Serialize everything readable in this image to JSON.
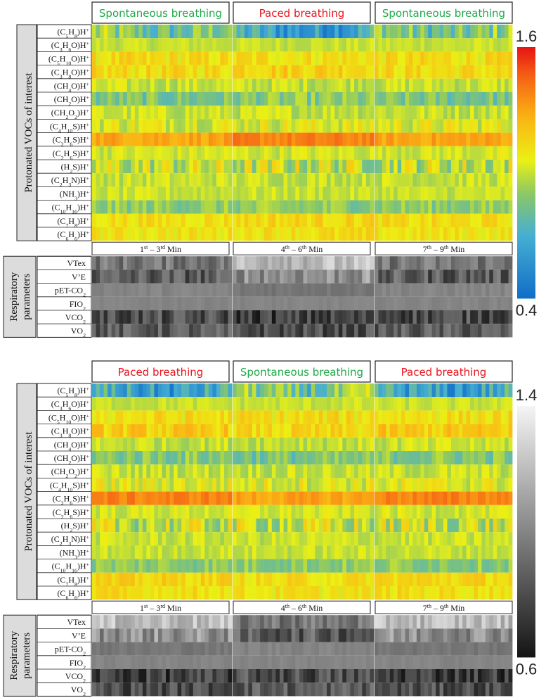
{
  "chart_data": [
    {
      "type": "heatmap",
      "colormap": "jet",
      "colorbar": {
        "max_label": "1.6",
        "min_label": "0.4",
        "max": 1.6,
        "min": 0.4
      },
      "voc_axis_title": "Protonated VOCs of interest",
      "resp_axis_title": [
        "Respiratory",
        "parameters"
      ],
      "phases": [
        {
          "label": "Spontaneous breathing",
          "color": "#1faa4a",
          "mode": "spontaneous",
          "window": {
            "main": "1",
            "sup_start": "st",
            "mid": " – 3",
            "sup_end": "rd",
            "tail": " Min"
          }
        },
        {
          "label": "Paced breathing",
          "color": "#e8141c",
          "mode": "paced",
          "window": {
            "main": "4",
            "sup_start": "th",
            "mid": " – 6",
            "sup_end": "th",
            "tail": " Min"
          }
        },
        {
          "label": "Spontaneous breathing",
          "color": "#1faa4a",
          "mode": "spontaneous",
          "window": {
            "main": "7",
            "sup_start": "th",
            "mid": " – 9",
            "sup_end": "th",
            "tail": " Min"
          }
        }
      ]
    },
    {
      "type": "heatmap",
      "colormap": "gray",
      "colorbar": {
        "max_label": "1.4",
        "min_label": "0.6",
        "max": 1.4,
        "min": 0.6
      },
      "voc_axis_title": "Protonated VOCs of interest",
      "resp_axis_title": [
        "Respiratory",
        "parameters"
      ],
      "phases": [
        {
          "label": "Paced breathing",
          "color": "#e8141c",
          "mode": "paced",
          "window": {
            "main": "1",
            "sup_start": "st",
            "mid": " – 3",
            "sup_end": "rd",
            "tail": " Min"
          }
        },
        {
          "label": "Spontaneous breathing",
          "color": "#1faa4a",
          "mode": "spontaneous",
          "window": {
            "main": "4",
            "sup_start": "th",
            "mid": " – 6",
            "sup_end": "th",
            "tail": " Min"
          }
        },
        {
          "label": "Paced breathing",
          "color": "#e8141c",
          "mode": "paced",
          "window": {
            "main": "7",
            "sup_start": "th",
            "mid": " – 9",
            "sup_end": "th",
            "tail": " Min"
          }
        }
      ]
    }
  ],
  "voc_rows": [
    {
      "id": "C5H8",
      "parts": [
        [
          "n",
          "(C"
        ],
        [
          "s",
          "5"
        ],
        [
          "n",
          "H"
        ],
        [
          "s",
          "8"
        ],
        [
          "n",
          ")H"
        ],
        [
          "p",
          "+"
        ]
      ],
      "base_spont": 0.95,
      "base_paced": 0.75,
      "var": 0.18
    },
    {
      "id": "C3H6O",
      "parts": [
        [
          "n",
          "(C"
        ],
        [
          "s",
          "3"
        ],
        [
          "n",
          "H"
        ],
        [
          "s",
          "6"
        ],
        [
          "n",
          "O)H"
        ],
        [
          "p",
          "+"
        ]
      ],
      "base_spont": 1.0,
      "base_paced": 1.0,
      "var": 0.05
    },
    {
      "id": "C5H10O",
      "parts": [
        [
          "n",
          "(C"
        ],
        [
          "s",
          "5"
        ],
        [
          "n",
          "H"
        ],
        [
          "s",
          "10"
        ],
        [
          "n",
          "O)H"
        ],
        [
          "p",
          "+"
        ]
      ],
      "base_spont": 1.12,
      "base_paced": 1.12,
      "var": 0.1
    },
    {
      "id": "C3H8O",
      "parts": [
        [
          "n",
          "(C"
        ],
        [
          "s",
          "3"
        ],
        [
          "n",
          "H"
        ],
        [
          "s",
          "8"
        ],
        [
          "n",
          "O)H"
        ],
        [
          "p",
          "+"
        ]
      ],
      "base_spont": 1.13,
      "base_paced": 1.18,
      "var": 0.1
    },
    {
      "id": "CH4O",
      "parts": [
        [
          "n",
          "(CH"
        ],
        [
          "s",
          "4"
        ],
        [
          "n",
          "O)H"
        ],
        [
          "p",
          "+"
        ]
      ],
      "base_spont": 1.0,
      "base_paced": 1.0,
      "var": 0.08
    },
    {
      "id": "CH2O",
      "parts": [
        [
          "n",
          "(CH"
        ],
        [
          "s",
          "2"
        ],
        [
          "n",
          "O)H"
        ],
        [
          "p",
          "+"
        ]
      ],
      "base_spont": 0.85,
      "base_paced": 0.88,
      "var": 0.12
    },
    {
      "id": "CH2O2",
      "parts": [
        [
          "n",
          "(CH"
        ],
        [
          "s",
          "2"
        ],
        [
          "n",
          "O"
        ],
        [
          "s",
          "2"
        ],
        [
          "n",
          ")H"
        ],
        [
          "p",
          "+"
        ]
      ],
      "base_spont": 1.0,
      "base_paced": 1.0,
      "var": 0.08
    },
    {
      "id": "C4H10S",
      "parts": [
        [
          "n",
          "(C"
        ],
        [
          "s",
          "4"
        ],
        [
          "n",
          "H"
        ],
        [
          "s",
          "10"
        ],
        [
          "n",
          "S)H"
        ],
        [
          "p",
          "+"
        ]
      ],
      "base_spont": 1.05,
      "base_paced": 1.05,
      "var": 0.12
    },
    {
      "id": "C2H6S_a",
      "parts": [
        [
          "n",
          "(C"
        ],
        [
          "s",
          "2"
        ],
        [
          "n",
          "H"
        ],
        [
          "s",
          "6"
        ],
        [
          "n",
          "S)H"
        ],
        [
          "p",
          "+"
        ]
      ],
      "base_spont": 1.3,
      "base_paced": 1.38,
      "var": 0.06
    },
    {
      "id": "C2H6S_b",
      "parts": [
        [
          "n",
          "(C"
        ],
        [
          "s",
          "2"
        ],
        [
          "n",
          "H"
        ],
        [
          "s",
          "6"
        ],
        [
          "n",
          "S)H"
        ],
        [
          "p",
          "+"
        ]
      ],
      "base_spont": 1.02,
      "base_paced": 1.02,
      "var": 0.07
    },
    {
      "id": "H2S",
      "parts": [
        [
          "n",
          "(H"
        ],
        [
          "s",
          "2"
        ],
        [
          "n",
          "S)H"
        ],
        [
          "p",
          "+"
        ]
      ],
      "base_spont": 1.0,
      "base_paced": 1.0,
      "var": 0.2
    },
    {
      "id": "C2H3N",
      "parts": [
        [
          "n",
          "(C"
        ],
        [
          "s",
          "2"
        ],
        [
          "n",
          "H"
        ],
        [
          "s",
          "3"
        ],
        [
          "n",
          "N)H"
        ],
        [
          "p",
          "+"
        ]
      ],
      "base_spont": 1.0,
      "base_paced": 1.0,
      "var": 0.07
    },
    {
      "id": "NH3",
      "parts": [
        [
          "n",
          "(NH"
        ],
        [
          "s",
          "3"
        ],
        [
          "n",
          ")H"
        ],
        [
          "p",
          "+"
        ]
      ],
      "base_spont": 1.0,
      "base_paced": 1.0,
      "var": 0.06
    },
    {
      "id": "C10H16",
      "parts": [
        [
          "n",
          "(C"
        ],
        [
          "s",
          "10"
        ],
        [
          "n",
          "H"
        ],
        [
          "s",
          "16"
        ],
        [
          "n",
          ")H"
        ],
        [
          "p",
          "+"
        ]
      ],
      "base_spont": 0.9,
      "base_paced": 0.9,
      "var": 0.1
    },
    {
      "id": "C7H8",
      "parts": [
        [
          "n",
          "(C"
        ],
        [
          "s",
          "7"
        ],
        [
          "n",
          "H"
        ],
        [
          "s",
          "8"
        ],
        [
          "n",
          ")H"
        ],
        [
          "p",
          "+"
        ]
      ],
      "base_spont": 1.12,
      "base_paced": 1.15,
      "var": 0.08
    },
    {
      "id": "C6H6",
      "parts": [
        [
          "n",
          "(C"
        ],
        [
          "s",
          "6"
        ],
        [
          "n",
          "H"
        ],
        [
          "s",
          "6"
        ],
        [
          "n",
          ")H"
        ],
        [
          "p",
          "+"
        ]
      ],
      "base_spont": 1.1,
      "base_paced": 1.12,
      "var": 0.08
    }
  ],
  "resp_rows": [
    {
      "id": "VTex",
      "parts": [
        [
          "n",
          "VTex"
        ]
      ],
      "base_spont": 0.95,
      "base_paced": 1.2,
      "var": 0.12
    },
    {
      "id": "VE",
      "parts": [
        [
          "n",
          "V’E"
        ]
      ],
      "base_spont": 0.85,
      "base_paced": 1.05,
      "var": 0.15
    },
    {
      "id": "pETCO2",
      "parts": [
        [
          "n",
          "pET-CO"
        ],
        [
          "s",
          "2"
        ]
      ],
      "base_spont": 1.0,
      "base_paced": 0.95,
      "var": 0.03
    },
    {
      "id": "FIO2",
      "parts": [
        [
          "n",
          "FIO"
        ],
        [
          "s",
          "2"
        ]
      ],
      "base_spont": 1.0,
      "base_paced": 1.0,
      "var": 0.02
    },
    {
      "id": "VCO2",
      "parts": [
        [
          "n",
          "VCO"
        ],
        [
          "s",
          "2"
        ]
      ],
      "base_spont": 0.8,
      "base_paced": 0.75,
      "var": 0.15
    },
    {
      "id": "VO2",
      "parts": [
        [
          "n",
          "VO"
        ],
        [
          "s",
          "2"
        ]
      ],
      "base_spont": 0.85,
      "base_paced": 0.8,
      "var": 0.13
    }
  ],
  "columns_per_phase": 36,
  "resp_colormap_range": [
    0.6,
    1.4
  ]
}
